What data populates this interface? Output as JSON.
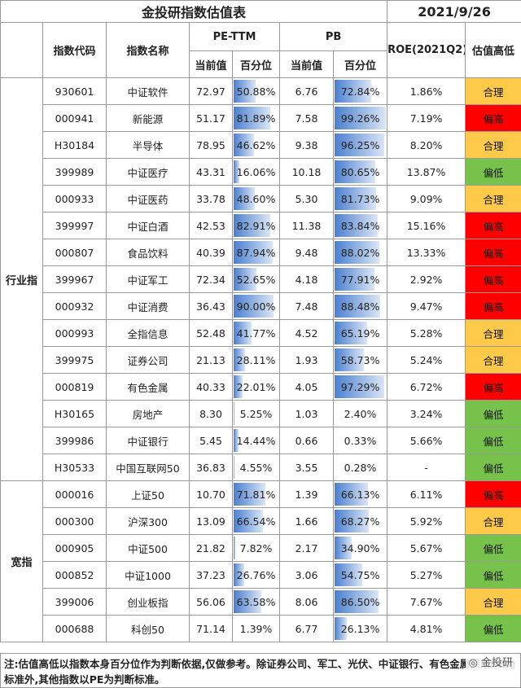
{
  "title": "金投研指数估值表",
  "date": "2021/9/26",
  "headers": {
    "code": "指数代码",
    "name": "指数名称",
    "pe": "PE-TTM",
    "pb": "PB",
    "roe": "ROE(2021Q2)",
    "status": "估值高低",
    "current": "当前值",
    "percentile": "百分位"
  },
  "groups": [
    {
      "label": "行业指",
      "rows": [
        {
          "code": "930601",
          "name": "中证软件",
          "pe": "72.97",
          "pe_pct": "50.88%",
          "pb": "6.76",
          "pb_pct": "72.84%",
          "roe": "1.86%",
          "status": "合理",
          "level": "ok"
        },
        {
          "code": "000941",
          "name": "新能源",
          "pe": "51.17",
          "pe_pct": "81.89%",
          "pb": "7.58",
          "pb_pct": "99.26%",
          "roe": "7.19%",
          "status": "偏高",
          "level": "hi"
        },
        {
          "code": "H30184",
          "name": "半导体",
          "pe": "78.95",
          "pe_pct": "46.62%",
          "pb": "9.38",
          "pb_pct": "96.25%",
          "roe": "8.20%",
          "status": "合理",
          "level": "ok"
        },
        {
          "code": "399989",
          "name": "中证医疗",
          "pe": "43.31",
          "pe_pct": "16.06%",
          "pb": "10.18",
          "pb_pct": "80.65%",
          "roe": "13.87%",
          "status": "偏低",
          "level": "lo"
        },
        {
          "code": "000933",
          "name": "中证医药",
          "pe": "33.78",
          "pe_pct": "48.60%",
          "pb": "5.30",
          "pb_pct": "81.73%",
          "roe": "9.09%",
          "status": "合理",
          "level": "ok"
        },
        {
          "code": "399997",
          "name": "中证白酒",
          "pe": "42.53",
          "pe_pct": "82.91%",
          "pb": "11.38",
          "pb_pct": "83.84%",
          "roe": "15.16%",
          "status": "偏高",
          "level": "hi"
        },
        {
          "code": "000807",
          "name": "食品饮料",
          "pe": "40.39",
          "pe_pct": "87.94%",
          "pb": "9.48",
          "pb_pct": "88.02%",
          "roe": "13.33%",
          "status": "偏高",
          "level": "hi"
        },
        {
          "code": "399967",
          "name": "中证军工",
          "pe": "72.34",
          "pe_pct": "52.65%",
          "pb": "4.18",
          "pb_pct": "77.91%",
          "roe": "2.92%",
          "status": "偏高",
          "level": "hi"
        },
        {
          "code": "000932",
          "name": "中证消费",
          "pe": "36.43",
          "pe_pct": "90.00%",
          "pb": "7.48",
          "pb_pct": "88.48%",
          "roe": "9.47%",
          "status": "偏高",
          "level": "hi"
        },
        {
          "code": "000993",
          "name": "全指信息",
          "pe": "52.48",
          "pe_pct": "41.77%",
          "pb": "4.52",
          "pb_pct": "65.19%",
          "roe": "5.28%",
          "status": "合理",
          "level": "ok"
        },
        {
          "code": "399975",
          "name": "证券公司",
          "pe": "21.13",
          "pe_pct": "28.11%",
          "pb": "1.93",
          "pb_pct": "58.73%",
          "roe": "5.24%",
          "status": "合理",
          "level": "ok"
        },
        {
          "code": "000819",
          "name": "有色金属",
          "pe": "40.33",
          "pe_pct": "22.01%",
          "pb": "4.05",
          "pb_pct": "97.29%",
          "roe": "6.72%",
          "status": "偏高",
          "level": "hi"
        },
        {
          "code": "H30165",
          "name": "房地产",
          "pe": "8.30",
          "pe_pct": "5.25%",
          "pb": "1.03",
          "pb_pct": "2.40%",
          "roe": "3.24%",
          "status": "偏低",
          "level": "lo"
        },
        {
          "code": "399986",
          "name": "中证银行",
          "pe": "5.45",
          "pe_pct": "14.44%",
          "pb": "0.66",
          "pb_pct": "0.33%",
          "roe": "5.66%",
          "status": "偏低",
          "level": "lo"
        },
        {
          "code": "H30533",
          "name": "中国互联网50",
          "pe": "36.83",
          "pe_pct": "4.55%",
          "pb": "3.55",
          "pb_pct": "0.28%",
          "roe": "-",
          "status": "偏低",
          "level": "lo"
        }
      ]
    },
    {
      "label": "宽指",
      "rows": [
        {
          "code": "000016",
          "name": "上证50",
          "pe": "10.70",
          "pe_pct": "71.81%",
          "pb": "1.39",
          "pb_pct": "66.13%",
          "roe": "6.11%",
          "status": "偏高",
          "level": "hi"
        },
        {
          "code": "000300",
          "name": "沪深300",
          "pe": "13.09",
          "pe_pct": "66.54%",
          "pb": "1.66",
          "pb_pct": "68.27%",
          "roe": "5.92%",
          "status": "合理",
          "level": "ok"
        },
        {
          "code": "000905",
          "name": "中证500",
          "pe": "21.82",
          "pe_pct": "7.82%",
          "pb": "2.17",
          "pb_pct": "34.90%",
          "roe": "5.67%",
          "status": "偏低",
          "level": "lo"
        },
        {
          "code": "000852",
          "name": "中证1000",
          "pe": "37.23",
          "pe_pct": "26.76%",
          "pb": "3.06",
          "pb_pct": "54.75%",
          "roe": "5.27%",
          "status": "偏低",
          "level": "lo"
        },
        {
          "code": "399006",
          "name": "创业板指",
          "pe": "56.06",
          "pe_pct": "63.58%",
          "pb": "8.06",
          "pb_pct": "86.50%",
          "roe": "7.67%",
          "status": "合理",
          "level": "ok"
        },
        {
          "code": "000688",
          "name": "科创50",
          "pe": "71.14",
          "pe_pct": "1.39%",
          "pb": "6.77",
          "pb_pct": "26.13%",
          "roe": "4.81%",
          "status": "偏低",
          "level": "lo"
        }
      ]
    }
  ],
  "note": "注:估值高低以指数本身百分位作为判断依据,仅做参考。除证券公司、军工、光伏、中证银行、有色金属采用PB为标准外,其他指数以PE为判断标准。",
  "watermark": "金投研"
}
